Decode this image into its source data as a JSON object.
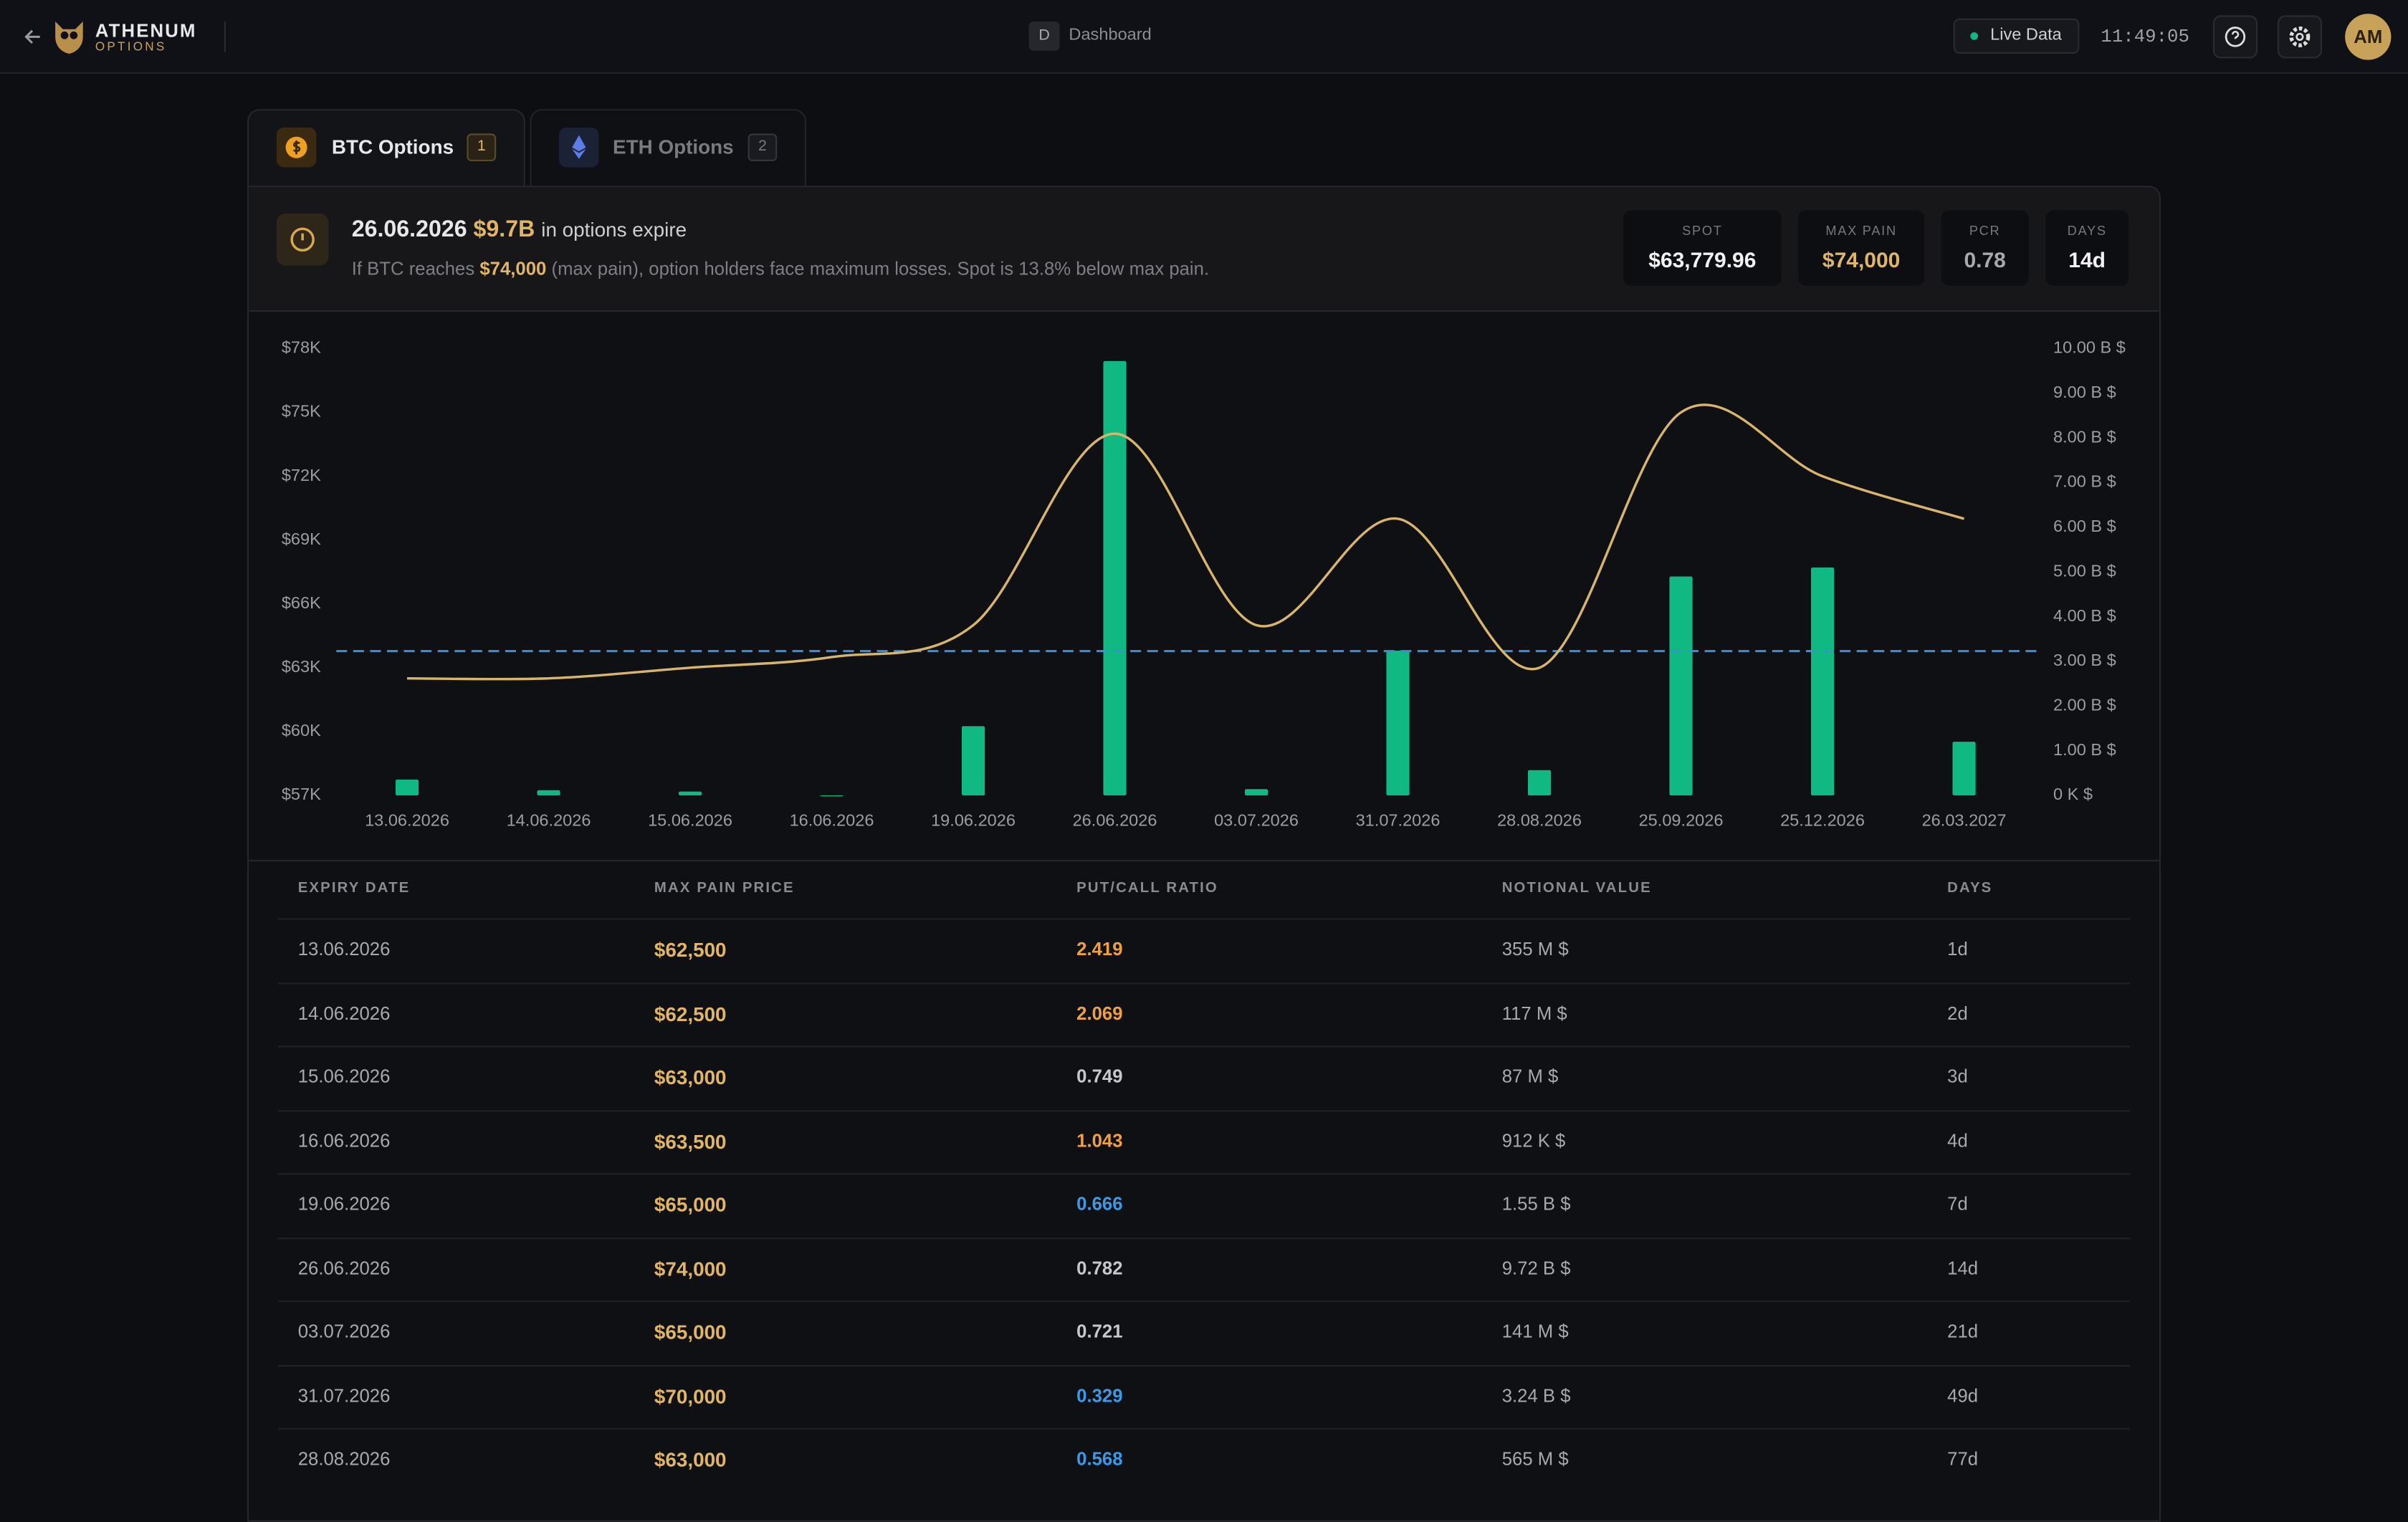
{
  "header": {
    "brand": "ATHENUM",
    "brand_sub": "OPTIONS",
    "page_key": "D",
    "page": "Dashboard",
    "live": "Live Data",
    "time": "11:49:05",
    "avatar": "AM"
  },
  "tabs": [
    {
      "label": "BTC Options",
      "badge": "1"
    },
    {
      "label": "ETH Options",
      "badge": "2"
    }
  ],
  "banner": {
    "date": "26.06.2026",
    "amount": "$9.7B",
    "suffix": "in options expire",
    "note_prefix": "If BTC reaches",
    "note_highlight": "$74,000",
    "note_suffix": "(max pain), option holders face maximum losses. Spot is 13.8% below max pain."
  },
  "stats": [
    {
      "label": "SPOT",
      "value": "$63,779.96"
    },
    {
      "label": "MAX PAIN",
      "value": "$74,000"
    },
    {
      "label": "PCR",
      "value": "0.78"
    },
    {
      "label": "DAYS",
      "value": "14d"
    }
  ],
  "chart_data": {
    "type": "bar",
    "categories": [
      "13.06.2026",
      "14.06.2026",
      "15.06.2026",
      "16.06.2026",
      "19.06.2026",
      "26.06.2026",
      "03.07.2026",
      "31.07.2026",
      "28.08.2026",
      "25.09.2026",
      "25.12.2026",
      "26.03.2027"
    ],
    "series": [
      {
        "type": "bar",
        "axis": "y2",
        "color": "#10b981",
        "values": [
          0.355,
          0.117,
          0.087,
          0.000912,
          1.55,
          9.72,
          0.141,
          3.24,
          0.565,
          4.9,
          5.1,
          1.2
        ]
      },
      {
        "type": "line",
        "axis": "y",
        "color": "#d9b56a",
        "values": [
          62500,
          62500,
          63000,
          63500,
          65000,
          74000,
          65000,
          70000,
          63000,
          75000,
          72000,
          70000
        ]
      }
    ],
    "reference_line": {
      "value": 63779.96,
      "color": "#3b8fd9"
    },
    "ylim": [
      57000,
      78000
    ],
    "yticks": [
      {
        "value": 57000,
        "label": "$57K"
      },
      {
        "value": 60000,
        "label": "$60K"
      },
      {
        "value": 63000,
        "label": "$63K"
      },
      {
        "value": 66000,
        "label": "$66K"
      },
      {
        "value": 69000,
        "label": "$69K"
      },
      {
        "value": 72000,
        "label": "$72K"
      },
      {
        "value": 75000,
        "label": "$75K"
      },
      {
        "value": 78000,
        "label": "$78K"
      }
    ],
    "y2lim": [
      0,
      10
    ],
    "y2ticks": [
      {
        "value": 0,
        "label": "0 K $"
      },
      {
        "value": 1,
        "label": "1.00 B $"
      },
      {
        "value": 2,
        "label": "2.00 B $"
      },
      {
        "value": 3,
        "label": "3.00 B $"
      },
      {
        "value": 4,
        "label": "4.00 B $"
      },
      {
        "value": 5,
        "label": "5.00 B $"
      },
      {
        "value": 6,
        "label": "6.00 B $"
      },
      {
        "value": 7,
        "label": "7.00 B $"
      },
      {
        "value": 8,
        "label": "8.00 B $"
      },
      {
        "value": 9,
        "label": "9.00 B $"
      },
      {
        "value": 10,
        "label": "10.00 B $"
      }
    ]
  },
  "table": {
    "columns": [
      "EXPIRY DATE",
      "MAX PAIN PRICE",
      "PUT/CALL RATIO",
      "NOTIONAL VALUE",
      "DAYS"
    ],
    "rows": [
      [
        "13.06.2026",
        "$62,500",
        "2.419",
        "355 M $",
        "1d"
      ],
      [
        "14.06.2026",
        "$62,500",
        "2.069",
        "117 M $",
        "2d"
      ],
      [
        "15.06.2026",
        "$63,000",
        "0.749",
        "87 M $",
        "3d"
      ],
      [
        "16.06.2026",
        "$63,500",
        "1.043",
        "912 K $",
        "4d"
      ],
      [
        "19.06.2026",
        "$65,000",
        "0.666",
        "1.55 B $",
        "7d"
      ],
      [
        "26.06.2026",
        "$74,000",
        "0.782",
        "9.72 B $",
        "14d"
      ],
      [
        "03.07.2026",
        "$65,000",
        "0.721",
        "141 M $",
        "21d"
      ],
      [
        "31.07.2026",
        "$70,000",
        "0.329",
        "3.24 B $",
        "49d"
      ],
      [
        "28.08.2026",
        "$63,000",
        "0.568",
        "565 M $",
        "77d"
      ]
    ]
  }
}
